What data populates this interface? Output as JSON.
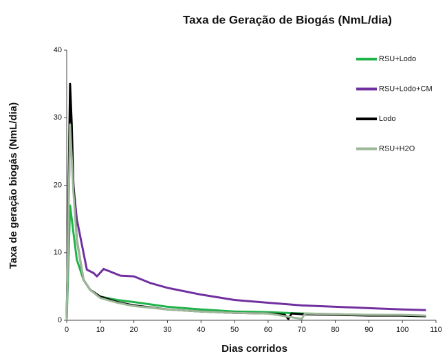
{
  "chart_data": {
    "type": "line",
    "title": "Taxa de Geração de Biogás (NmL/dia)",
    "xlabel": "Dias corridos",
    "ylabel": "Taxa de geração biogás (NmL/dia)",
    "xlim": [
      0,
      110
    ],
    "xticks": [
      0,
      10,
      20,
      30,
      40,
      50,
      60,
      70,
      80,
      90,
      100,
      110
    ],
    "ylim": [
      0,
      40
    ],
    "yticks": [
      0,
      10,
      20,
      30,
      40
    ],
    "legend": "upper right",
    "series": [
      {
        "name": "RSU+Lodo",
        "color": "#1fb34a",
        "x": [
          0,
          1,
          2,
          3,
          5,
          7,
          10,
          15,
          20,
          30,
          40,
          50,
          60,
          70,
          80,
          90,
          100,
          107
        ],
        "values": [
          0,
          17,
          13,
          9,
          6,
          4.5,
          3.5,
          3,
          2.7,
          2,
          1.6,
          1.3,
          1.2,
          1,
          0.9,
          0.8,
          0.7,
          0.6
        ]
      },
      {
        "name": "RSU+Lodo+CM",
        "color": "#7030a0",
        "x": [
          0,
          1,
          2,
          3,
          5,
          6,
          8,
          9,
          11,
          13,
          16,
          20,
          25,
          30,
          40,
          50,
          60,
          70,
          80,
          90,
          100,
          107
        ],
        "values": [
          0,
          29,
          20,
          15,
          10,
          7.5,
          7,
          6.5,
          7.6,
          7.2,
          6.6,
          6.5,
          5.5,
          4.8,
          3.8,
          3,
          2.6,
          2.2,
          2,
          1.8,
          1.6,
          1.5
        ]
      },
      {
        "name": "Lodo",
        "color": "#000000",
        "x": [
          0,
          1,
          1.5,
          2,
          3,
          5,
          7,
          10,
          15,
          20,
          30,
          40,
          50,
          60,
          65,
          66,
          67,
          70,
          80,
          90,
          100,
          107
        ],
        "values": [
          0,
          35,
          29,
          20,
          12,
          6,
          4.5,
          3.5,
          2.7,
          2.2,
          1.6,
          1.3,
          1.1,
          1,
          0.8,
          0.2,
          1,
          0.9,
          0.8,
          0.7,
          0.7,
          0.6
        ]
      },
      {
        "name": "RSU+H2O",
        "color": "#9fb89a",
        "x": [
          0,
          1,
          2,
          3,
          5,
          7,
          10,
          15,
          20,
          30,
          40,
          50,
          60,
          70,
          71,
          80,
          90,
          100,
          107
        ],
        "values": [
          0,
          29,
          19,
          12,
          6,
          4.5,
          3.3,
          2.6,
          2.1,
          1.6,
          1.3,
          1.1,
          1,
          0.2,
          1,
          0.9,
          0.8,
          0.8,
          0.7
        ]
      }
    ]
  }
}
